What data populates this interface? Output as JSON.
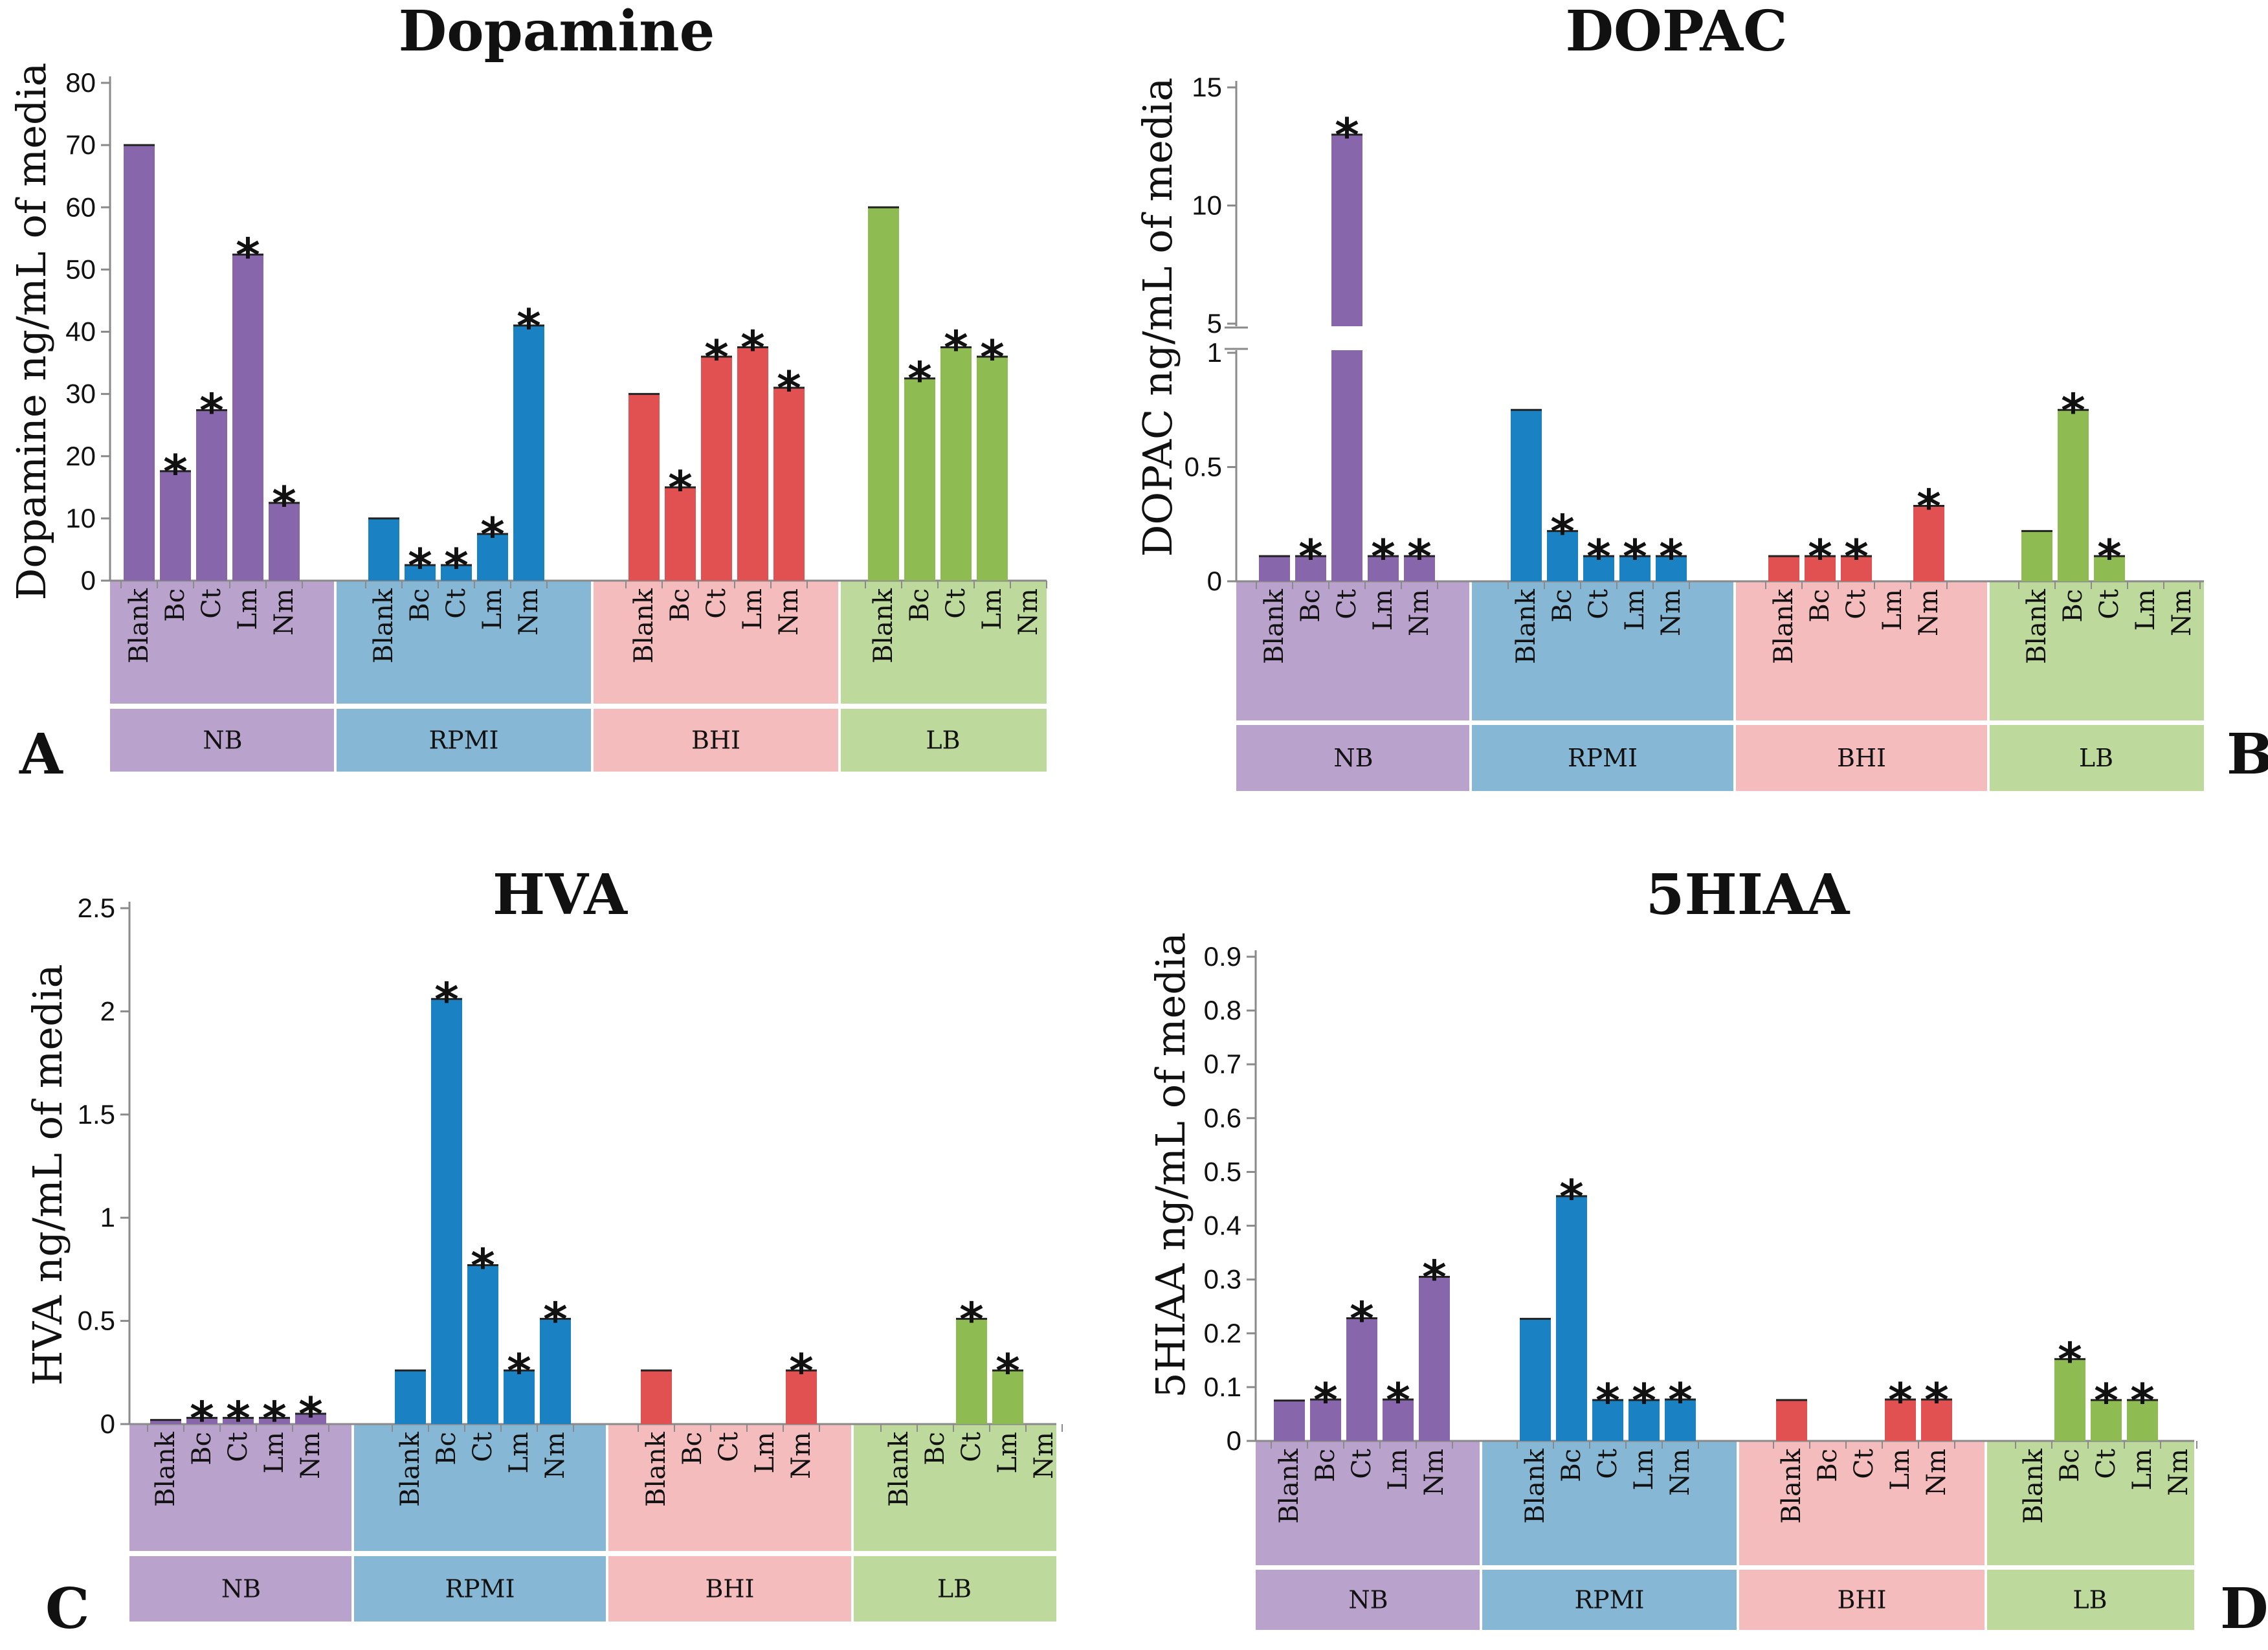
{
  "colors": {
    "NB": "#8766ab",
    "RPMI": "#1a82c3",
    "BHI": "#e15151",
    "LB": "#8fbc52",
    "NB_bg": "#b9a3cc",
    "RPMI_bg": "#86b7d4",
    "BHI_bg": "#f4bcbc",
    "LB_bg": "#bdd99c",
    "axis": "#8a8a8a",
    "text": "#111111"
  },
  "chart_data": [
    {
      "panel": "A",
      "type": "bar",
      "title": "Dopamine",
      "ylabel": "Dopamine ng/mL of media",
      "ylim": [
        0,
        80
      ],
      "yticks": [
        "0",
        "10",
        "20",
        "30",
        "40",
        "50",
        "60",
        "70",
        "80"
      ],
      "groups": [
        {
          "name": "NB",
          "categories": [
            "Blank",
            "Bc",
            "Ct",
            "Lm",
            "Nm"
          ],
          "values": [
            70,
            17.6,
            27.4,
            52.4,
            12.5
          ],
          "significant": [
            false,
            true,
            true,
            true,
            true
          ]
        },
        {
          "name": "RPMI",
          "categories": [
            "Blank",
            "Bc",
            "Ct",
            "Lm",
            "Nm"
          ],
          "values": [
            10,
            2.5,
            2.5,
            7.5,
            41
          ],
          "significant": [
            false,
            true,
            true,
            true,
            true
          ]
        },
        {
          "name": "BHI",
          "categories": [
            "Blank",
            "Bc",
            "Ct",
            "Lm",
            "Nm"
          ],
          "values": [
            30,
            15,
            36,
            37.5,
            31
          ],
          "significant": [
            false,
            true,
            true,
            true,
            true
          ]
        },
        {
          "name": "LB",
          "categories": [
            "Blank",
            "Bc",
            "Ct",
            "Lm",
            "Nm"
          ],
          "values": [
            60,
            32.5,
            37.5,
            36,
            0
          ],
          "significant": [
            false,
            true,
            true,
            true,
            false
          ]
        }
      ]
    },
    {
      "panel": "B",
      "type": "bar",
      "title": "DOPAC",
      "ylabel": "DOPAC ng/mL of media",
      "ylim": [
        0,
        15
      ],
      "axis_break": [
        1,
        5
      ],
      "yticks": [
        "0",
        "0.5",
        "1",
        "5",
        "10",
        "15"
      ],
      "groups": [
        {
          "name": "NB",
          "categories": [
            "Blank",
            "Bc",
            "Ct",
            "Lm",
            "Nm"
          ],
          "values": [
            0.11,
            0.11,
            13,
            0.11,
            0.11
          ],
          "significant": [
            false,
            true,
            true,
            true,
            true
          ]
        },
        {
          "name": "RPMI",
          "categories": [
            "Blank",
            "Bc",
            "Ct",
            "Lm",
            "Nm"
          ],
          "values": [
            0.75,
            0.22,
            0.11,
            0.11,
            0.11
          ],
          "significant": [
            false,
            true,
            true,
            true,
            true
          ]
        },
        {
          "name": "BHI",
          "categories": [
            "Blank",
            "Bc",
            "Ct",
            "Lm",
            "Nm"
          ],
          "values": [
            0.11,
            0.11,
            0.11,
            0,
            0.33
          ],
          "significant": [
            false,
            true,
            true,
            false,
            true
          ]
        },
        {
          "name": "LB",
          "categories": [
            "Blank",
            "Bc",
            "Ct",
            "Lm",
            "Nm"
          ],
          "values": [
            0.22,
            0.75,
            0.11,
            0,
            0
          ],
          "significant": [
            false,
            true,
            true,
            false,
            false
          ]
        }
      ]
    },
    {
      "panel": "C",
      "type": "bar",
      "title": "HVA",
      "ylabel": "HVA ng/mL of media",
      "ylim": [
        0,
        2.5
      ],
      "yticks": [
        "0",
        "0.5",
        "1",
        "1.5",
        "2",
        "2.5"
      ],
      "groups": [
        {
          "name": "NB",
          "categories": [
            "Blank",
            "Bc",
            "Ct",
            "Lm",
            "Nm"
          ],
          "values": [
            0.02,
            0.03,
            0.03,
            0.03,
            0.05
          ],
          "significant": [
            false,
            true,
            true,
            true,
            true
          ]
        },
        {
          "name": "RPMI",
          "categories": [
            "Blank",
            "Bc",
            "Ct",
            "Lm",
            "Nm"
          ],
          "values": [
            0.26,
            2.06,
            0.77,
            0.26,
            0.51
          ],
          "significant": [
            false,
            true,
            true,
            true,
            true
          ]
        },
        {
          "name": "BHI",
          "categories": [
            "Blank",
            "Bc",
            "Ct",
            "Lm",
            "Nm"
          ],
          "values": [
            0.26,
            0,
            0,
            0,
            0.26
          ],
          "significant": [
            false,
            false,
            false,
            false,
            true
          ]
        },
        {
          "name": "LB",
          "categories": [
            "Blank",
            "Bc",
            "Ct",
            "Lm",
            "Nm"
          ],
          "values": [
            0,
            0,
            0.51,
            0.26,
            0
          ],
          "significant": [
            false,
            false,
            true,
            true,
            false
          ]
        }
      ]
    },
    {
      "panel": "D",
      "type": "bar",
      "title": "5HIAA",
      "ylabel": "5HIAA ng/mL of media",
      "ylim": [
        0,
        0.9
      ],
      "yticks": [
        "0",
        "0.1",
        "0.2",
        "0.3",
        "0.4",
        "0.5",
        "0.6",
        "0.7",
        "0.8",
        "0.9"
      ],
      "groups": [
        {
          "name": "NB",
          "categories": [
            "Blank",
            "Bc",
            "Ct",
            "Lm",
            "Nm"
          ],
          "values": [
            0.075,
            0.077,
            0.228,
            0.077,
            0.305
          ],
          "significant": [
            false,
            true,
            true,
            true,
            true
          ]
        },
        {
          "name": "RPMI",
          "categories": [
            "Blank",
            "Bc",
            "Ct",
            "Lm",
            "Nm"
          ],
          "values": [
            0.227,
            0.455,
            0.076,
            0.076,
            0.077
          ],
          "significant": [
            false,
            true,
            true,
            true,
            true
          ]
        },
        {
          "name": "BHI",
          "categories": [
            "Blank",
            "Bc",
            "Ct",
            "Lm",
            "Nm"
          ],
          "values": [
            0.076,
            0,
            0,
            0.077,
            0.077
          ],
          "significant": [
            false,
            false,
            false,
            true,
            true
          ]
        },
        {
          "name": "LB",
          "categories": [
            "Blank",
            "Bc",
            "Ct",
            "Lm",
            "Nm"
          ],
          "values": [
            0,
            0.152,
            0.076,
            0.076,
            0
          ],
          "significant": [
            false,
            true,
            true,
            true,
            false
          ]
        }
      ]
    }
  ],
  "significance_marker": "*"
}
